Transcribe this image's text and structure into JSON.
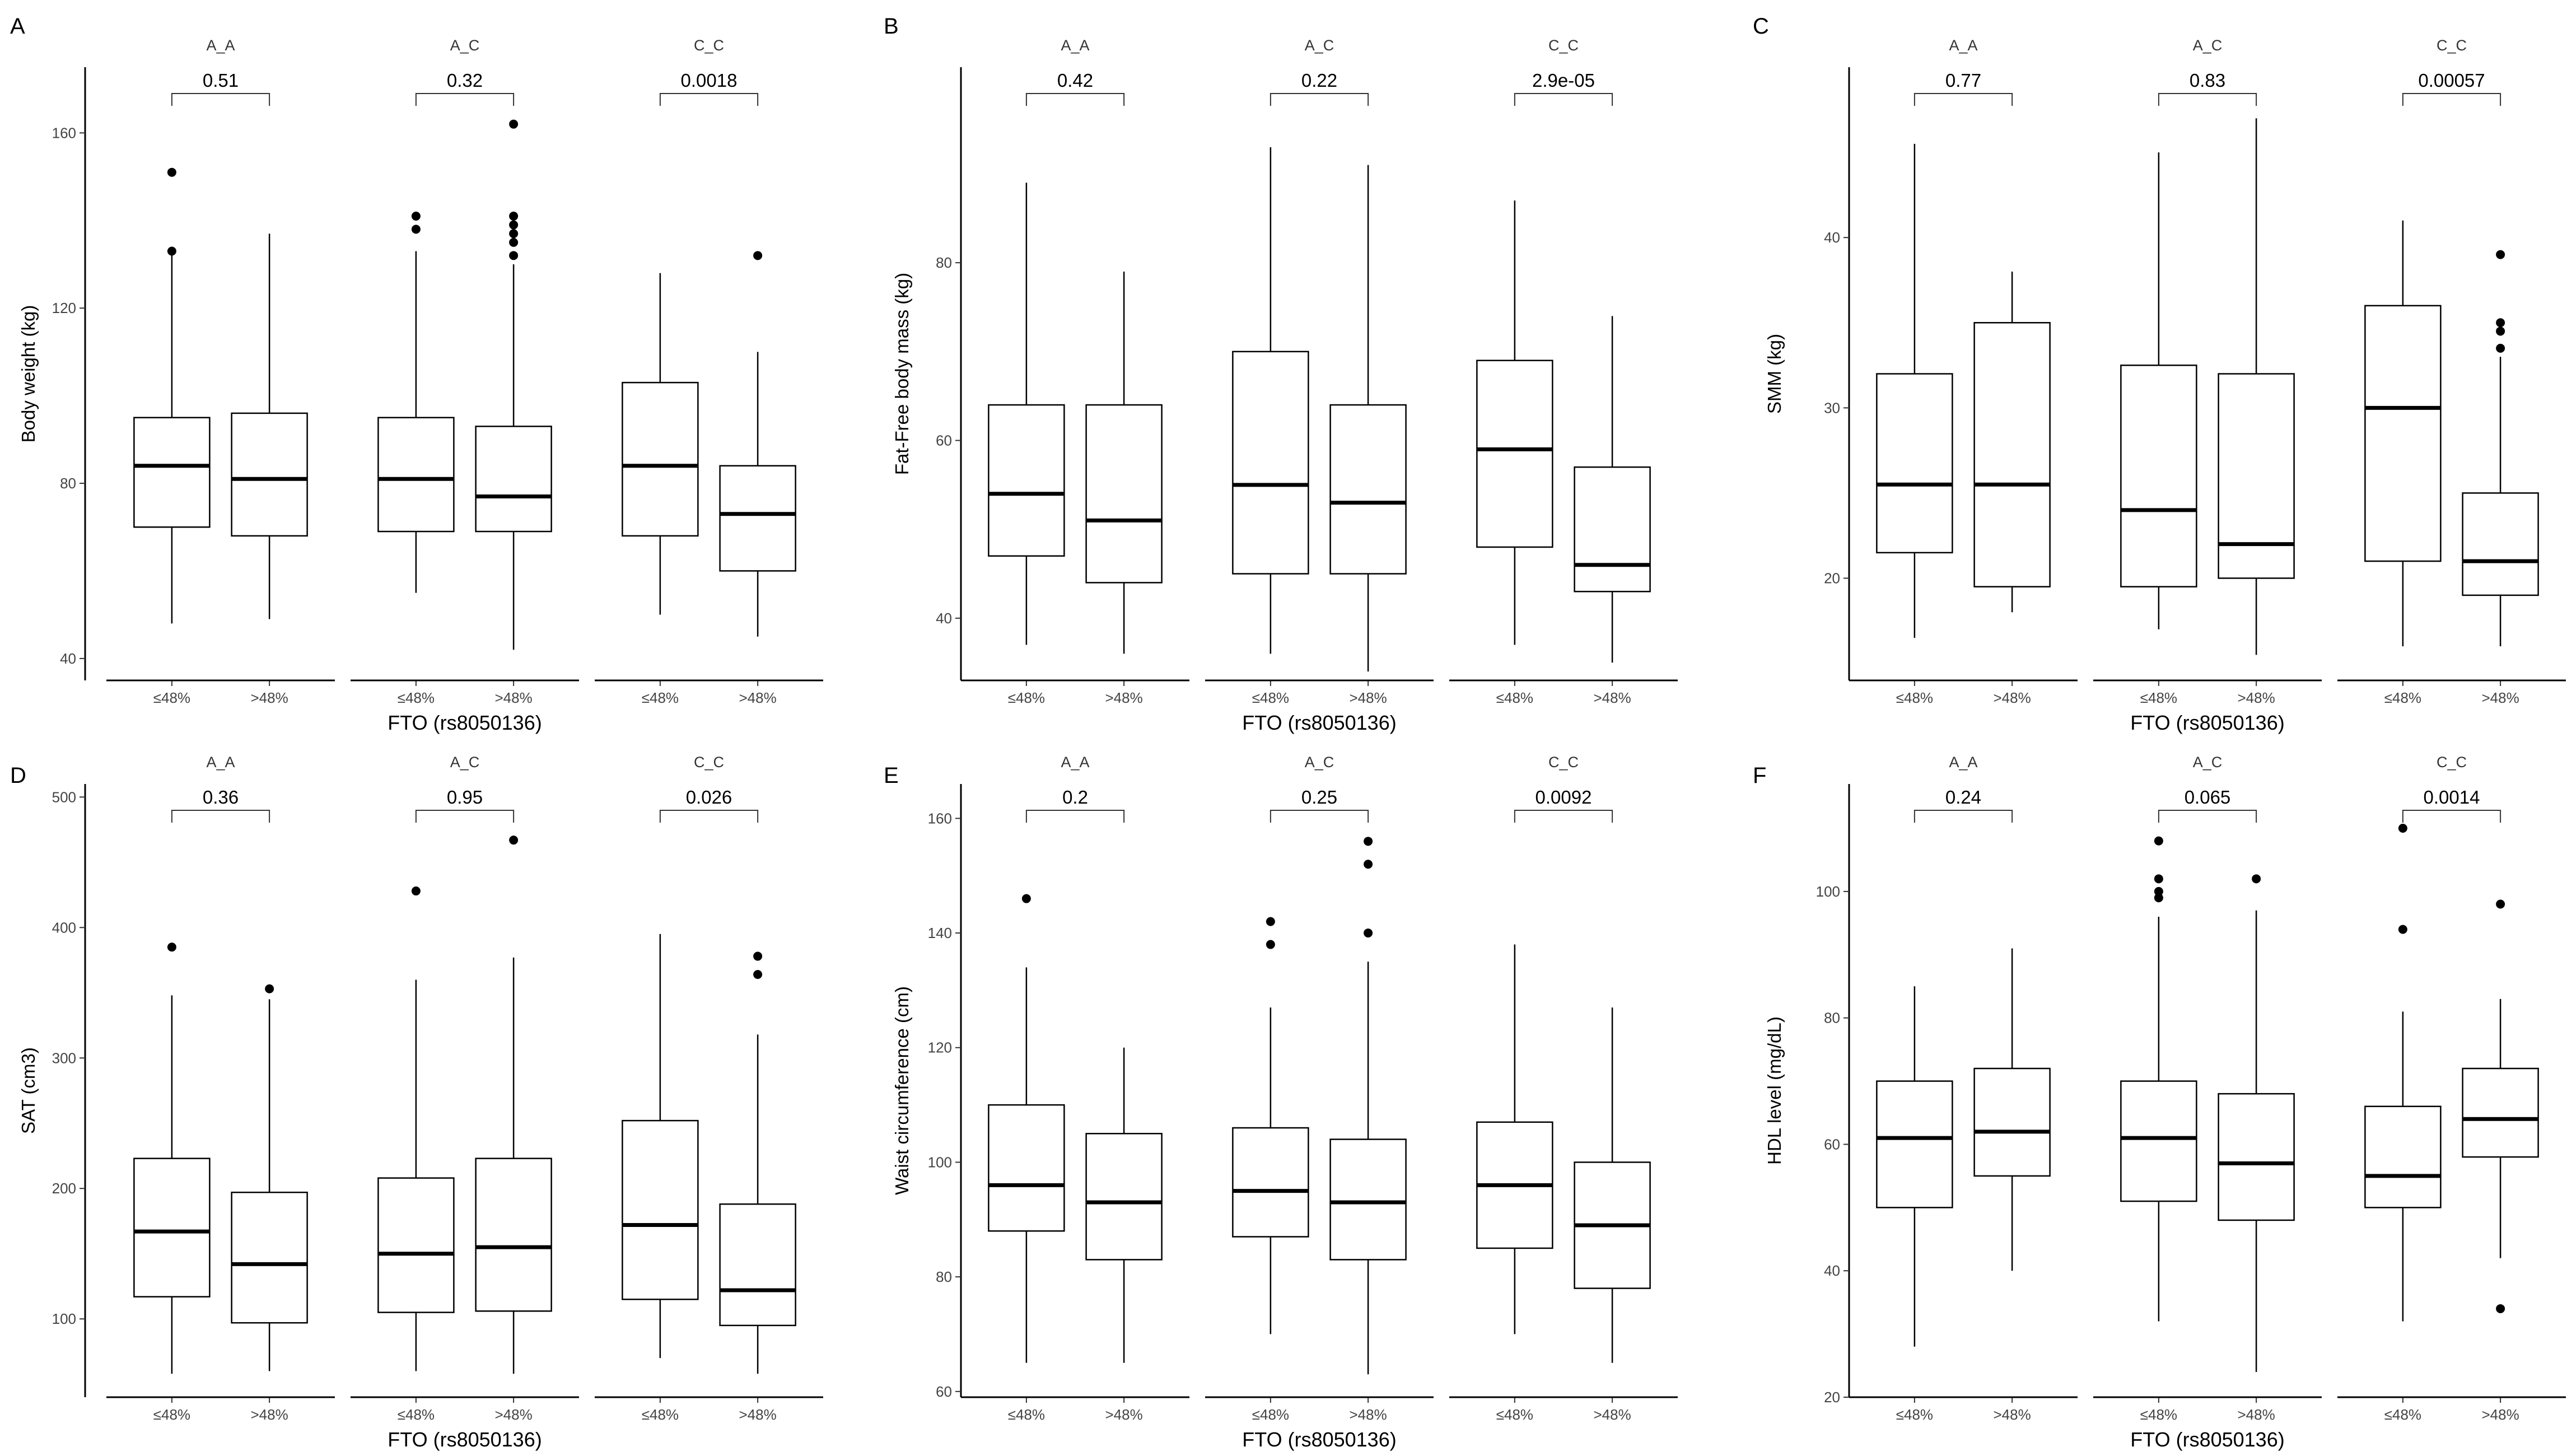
{
  "x_axis_label": "FTO (rs8050136)",
  "genotypes": [
    "A_A",
    "A_C",
    "C_C"
  ],
  "groups": [
    "≤48%",
    ">48%"
  ],
  "chart_data": [
    {
      "type": "boxplot",
      "panel": "A",
      "ylabel": "Body weight (kg)",
      "xlabel": "FTO (rs8050136)",
      "ylim": [
        35,
        175
      ],
      "yticks": [
        40,
        80,
        120,
        160
      ],
      "facets": [
        {
          "genotype": "A_A",
          "p_value": "0.51",
          "boxes": [
            {
              "group": "≤48%",
              "lower": 48,
              "q1": 70,
              "median": 84,
              "q3": 95,
              "upper": 133,
              "outliers": [
                133,
                151
              ]
            },
            {
              "group": ">48%",
              "lower": 49,
              "q1": 68,
              "median": 81,
              "q3": 96,
              "upper": 137,
              "outliers": []
            }
          ]
        },
        {
          "genotype": "A_C",
          "p_value": "0.32",
          "boxes": [
            {
              "group": "≤48%",
              "lower": 55,
              "q1": 69,
              "median": 81,
              "q3": 95,
              "upper": 133,
              "outliers": [
                138,
                141
              ]
            },
            {
              "group": ">48%",
              "lower": 42,
              "q1": 69,
              "median": 77,
              "q3": 93,
              "upper": 130,
              "outliers": [
                132,
                135,
                137,
                139,
                141,
                162
              ]
            }
          ]
        },
        {
          "genotype": "C_C",
          "p_value": "0.0018",
          "boxes": [
            {
              "group": "≤48%",
              "lower": 50,
              "q1": 68,
              "median": 84,
              "q3": 103,
              "upper": 128,
              "outliers": []
            },
            {
              "group": ">48%",
              "lower": 45,
              "q1": 60,
              "median": 73,
              "q3": 84,
              "upper": 110,
              "outliers": [
                132
              ]
            }
          ]
        }
      ]
    },
    {
      "type": "boxplot",
      "panel": "B",
      "ylabel": "Fat-Free body mass (kg)",
      "xlabel": "FTO (rs8050136)",
      "ylim": [
        33,
        102
      ],
      "yticks": [
        40,
        60,
        80
      ],
      "facets": [
        {
          "genotype": "A_A",
          "p_value": "0.42",
          "boxes": [
            {
              "group": "≤48%",
              "lower": 37,
              "q1": 47,
              "median": 54,
              "q3": 64,
              "upper": 89,
              "outliers": []
            },
            {
              "group": ">48%",
              "lower": 36,
              "q1": 44,
              "median": 51,
              "q3": 64,
              "upper": 79,
              "outliers": []
            }
          ]
        },
        {
          "genotype": "A_C",
          "p_value": "0.22",
          "boxes": [
            {
              "group": "≤48%",
              "lower": 36,
              "q1": 45,
              "median": 55,
              "q3": 70,
              "upper": 93,
              "outliers": []
            },
            {
              "group": ">48%",
              "lower": 34,
              "q1": 45,
              "median": 53,
              "q3": 64,
              "upper": 91,
              "outliers": []
            }
          ]
        },
        {
          "genotype": "C_C",
          "p_value": "2.9e-05",
          "boxes": [
            {
              "group": "≤48%",
              "lower": 37,
              "q1": 48,
              "median": 59,
              "q3": 69,
              "upper": 87,
              "outliers": []
            },
            {
              "group": ">48%",
              "lower": 35,
              "q1": 43,
              "median": 46,
              "q3": 57,
              "upper": 74,
              "outliers": []
            }
          ]
        }
      ]
    },
    {
      "type": "boxplot",
      "panel": "C",
      "ylabel": "SMM (kg)",
      "xlabel": "FTO (rs8050136)",
      "ylim": [
        14,
        50
      ],
      "yticks": [
        20,
        30,
        40
      ],
      "facets": [
        {
          "genotype": "A_A",
          "p_value": "0.77",
          "boxes": [
            {
              "group": "≤48%",
              "lower": 16.5,
              "q1": 21.5,
              "median": 25.5,
              "q3": 32,
              "upper": 45.5,
              "outliers": []
            },
            {
              "group": ">48%",
              "lower": 18,
              "q1": 19.5,
              "median": 25.5,
              "q3": 35,
              "upper": 38,
              "outliers": []
            }
          ]
        },
        {
          "genotype": "A_C",
          "p_value": "0.83",
          "boxes": [
            {
              "group": "≤48%",
              "lower": 17,
              "q1": 19.5,
              "median": 24,
              "q3": 32.5,
              "upper": 45,
              "outliers": []
            },
            {
              "group": ">48%",
              "lower": 15.5,
              "q1": 20,
              "median": 22,
              "q3": 32,
              "upper": 47,
              "outliers": []
            }
          ]
        },
        {
          "genotype": "C_C",
          "p_value": "0.00057",
          "boxes": [
            {
              "group": "≤48%",
              "lower": 16,
              "q1": 21,
              "median": 30,
              "q3": 36,
              "upper": 41,
              "outliers": []
            },
            {
              "group": ">48%",
              "lower": 16,
              "q1": 19,
              "median": 21,
              "q3": 25,
              "upper": 33,
              "outliers": [
                33.5,
                34.5,
                35,
                39
              ]
            }
          ]
        }
      ]
    },
    {
      "type": "boxplot",
      "panel": "D",
      "ylabel": "SAT (cm3)",
      "xlabel": "FTO (rs8050136)",
      "ylim": [
        40,
        510
      ],
      "yticks": [
        100,
        200,
        300,
        400,
        500
      ],
      "facets": [
        {
          "genotype": "A_A",
          "p_value": "0.36",
          "boxes": [
            {
              "group": "≤48%",
              "lower": 58,
              "q1": 117,
              "median": 167,
              "q3": 223,
              "upper": 348,
              "outliers": [
                385
              ]
            },
            {
              "group": ">48%",
              "lower": 60,
              "q1": 97,
              "median": 142,
              "q3": 197,
              "upper": 345,
              "outliers": [
                353
              ]
            }
          ]
        },
        {
          "genotype": "A_C",
          "p_value": "0.95",
          "boxes": [
            {
              "group": "≤48%",
              "lower": 60,
              "q1": 105,
              "median": 150,
              "q3": 208,
              "upper": 360,
              "outliers": [
                428
              ]
            },
            {
              "group": ">48%",
              "lower": 58,
              "q1": 106,
              "median": 155,
              "q3": 223,
              "upper": 377,
              "outliers": [
                467
              ]
            }
          ]
        },
        {
          "genotype": "C_C",
          "p_value": "0.026",
          "boxes": [
            {
              "group": "≤48%",
              "lower": 70,
              "q1": 115,
              "median": 172,
              "q3": 252,
              "upper": 395,
              "outliers": []
            },
            {
              "group": ">48%",
              "lower": 58,
              "q1": 95,
              "median": 122,
              "q3": 188,
              "upper": 318,
              "outliers": [
                364,
                378
              ]
            }
          ]
        }
      ]
    },
    {
      "type": "boxplot",
      "panel": "E",
      "ylabel": "Waist circumference (cm)",
      "xlabel": "FTO (rs8050136)",
      "ylim": [
        59,
        166
      ],
      "yticks": [
        60,
        80,
        100,
        120,
        140,
        160
      ],
      "facets": [
        {
          "genotype": "A_A",
          "p_value": "0.2",
          "boxes": [
            {
              "group": "≤48%",
              "lower": 65,
              "q1": 88,
              "median": 96,
              "q3": 110,
              "upper": 134,
              "outliers": [
                146
              ]
            },
            {
              "group": ">48%",
              "lower": 65,
              "q1": 83,
              "median": 93,
              "q3": 105,
              "upper": 120,
              "outliers": []
            }
          ]
        },
        {
          "genotype": "A_C",
          "p_value": "0.25",
          "boxes": [
            {
              "group": "≤48%",
              "lower": 70,
              "q1": 87,
              "median": 95,
              "q3": 106,
              "upper": 127,
              "outliers": [
                138,
                142
              ]
            },
            {
              "group": ">48%",
              "lower": 63,
              "q1": 83,
              "median": 93,
              "q3": 104,
              "upper": 135,
              "outliers": [
                140,
                152,
                156
              ]
            }
          ]
        },
        {
          "genotype": "C_C",
          "p_value": "0.0092",
          "boxes": [
            {
              "group": "≤48%",
              "lower": 70,
              "q1": 85,
              "median": 96,
              "q3": 107,
              "upper": 138,
              "outliers": []
            },
            {
              "group": ">48%",
              "lower": 65,
              "q1": 78,
              "median": 89,
              "q3": 100,
              "upper": 127,
              "outliers": []
            }
          ]
        }
      ]
    },
    {
      "type": "boxplot",
      "panel": "F",
      "ylabel": "HDL level (mg/dL)",
      "xlabel": "FTO (rs8050136)",
      "ylim": [
        20,
        117
      ],
      "yticks": [
        20,
        40,
        60,
        80,
        100
      ],
      "facets": [
        {
          "genotype": "A_A",
          "p_value": "0.24",
          "boxes": [
            {
              "group": "≤48%",
              "lower": 28,
              "q1": 50,
              "median": 61,
              "q3": 70,
              "upper": 85,
              "outliers": []
            },
            {
              "group": ">48%",
              "lower": 40,
              "q1": 55,
              "median": 62,
              "q3": 72,
              "upper": 91,
              "outliers": []
            }
          ]
        },
        {
          "genotype": "A_C",
          "p_value": "0.065",
          "boxes": [
            {
              "group": "≤48%",
              "lower": 32,
              "q1": 51,
              "median": 61,
              "q3": 70,
              "upper": 96,
              "outliers": [
                99,
                100,
                102,
                108
              ]
            },
            {
              "group": ">48%",
              "lower": 24,
              "q1": 48,
              "median": 57,
              "q3": 68,
              "upper": 97,
              "outliers": [
                102
              ]
            }
          ]
        },
        {
          "genotype": "C_C",
          "p_value": "0.0014",
          "boxes": [
            {
              "group": "≤48%",
              "lower": 32,
              "q1": 50,
              "median": 55,
              "q3": 66,
              "upper": 81,
              "outliers": [
                94,
                110
              ]
            },
            {
              "group": ">48%",
              "lower": 42,
              "q1": 58,
              "median": 64,
              "q3": 72,
              "upper": 83,
              "outliers": [
                34,
                98
              ]
            }
          ]
        }
      ]
    }
  ]
}
